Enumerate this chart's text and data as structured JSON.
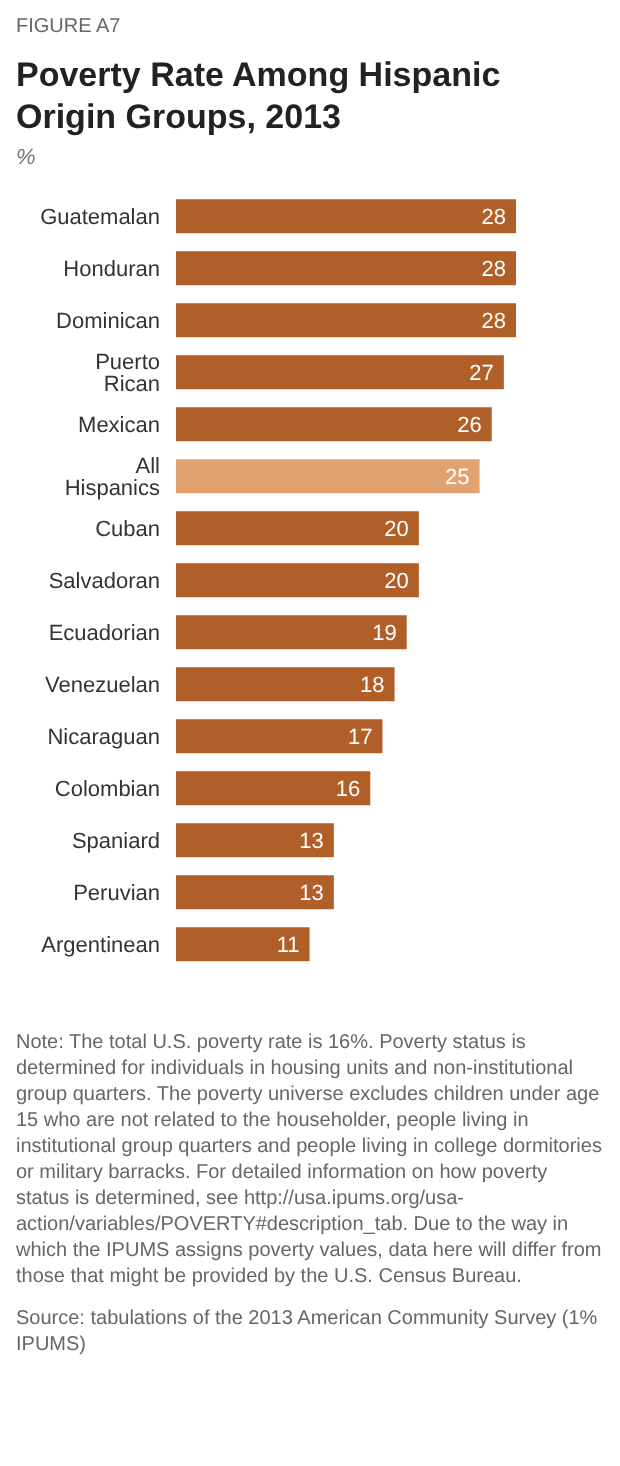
{
  "chart_data": {
    "type": "bar",
    "orientation": "horizontal",
    "title": "Poverty Rate Among Hispanic Origin Groups, 2013",
    "xlabel": "%",
    "categories": [
      "Guatemalan",
      "Honduran",
      "Dominican",
      "Puerto Rican",
      "Mexican",
      "All Hispanics",
      "Cuban",
      "Salvadoran",
      "Ecuadorian",
      "Venezuelan",
      "Nicaraguan",
      "Colombian",
      "Spaniard",
      "Peruvian",
      "Argentinean"
    ],
    "values": [
      28,
      28,
      28,
      27,
      26,
      25,
      20,
      20,
      19,
      18,
      17,
      16,
      13,
      13,
      11
    ],
    "colors": [
      "#b05f28",
      "#b05f28",
      "#b05f28",
      "#b05f28",
      "#b05f28",
      "#e2a26f",
      "#b05f28",
      "#b05f28",
      "#b05f28",
      "#b05f28",
      "#b05f28",
      "#b05f28",
      "#b05f28",
      "#b05f28",
      "#b05f28"
    ],
    "data_labels": true,
    "annotations": [
      "FIGURE A7",
      "Note: The total U.S. poverty rate is 16%. Poverty status is determined for individuals in housing units and non-institutional group quarters. The poverty universe excludes children under age 15 who are not related to the householder, people living in institutional group quarters and people living in college dormitories or military barracks. For detailed information on how poverty status is determined, see http://usa.ipums.org/usa-action/variables/POVERTY#description_tab. Due to the way in which the IPUMS assigns poverty values, data here will differ from those that might be provided by the U.S. Census Bureau.",
      "Source: tabulations of the 2013 American Community Survey (1% IPUMS)"
    ]
  }
}
